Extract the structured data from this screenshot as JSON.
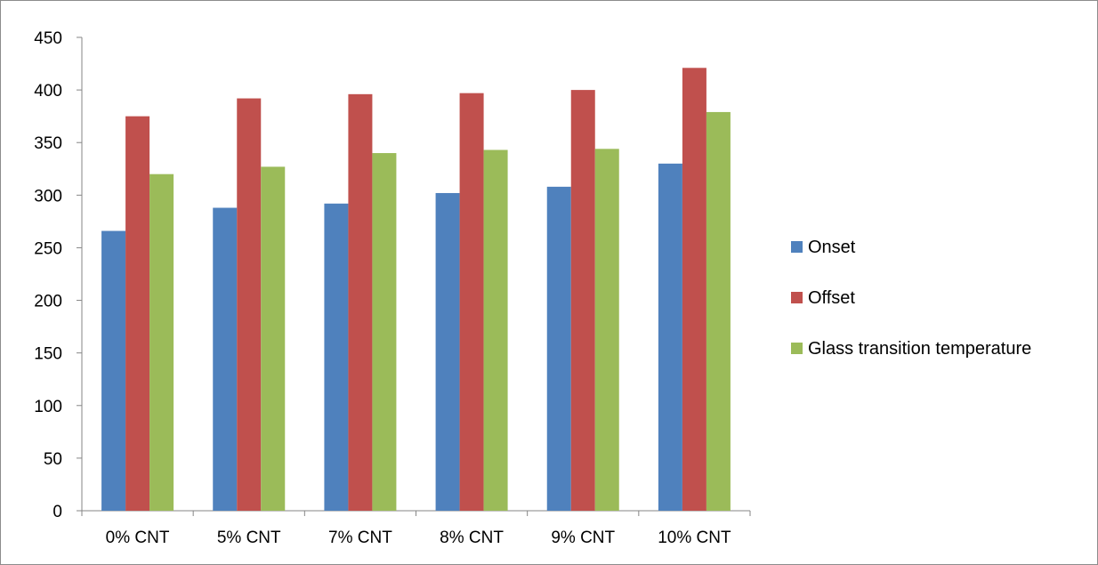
{
  "chart_data": {
    "type": "bar",
    "title": "",
    "xlabel": "",
    "ylabel": "",
    "categories": [
      "0% CNT",
      "5% CNT",
      "7% CNT",
      "8% CNT",
      "9% CNT",
      "10% CNT"
    ],
    "series": [
      {
        "name": "Onset",
        "color": "#4f81bd",
        "values": [
          266,
          288,
          292,
          302,
          308,
          330
        ]
      },
      {
        "name": "Offset",
        "color": "#c0504d",
        "values": [
          375,
          392,
          396,
          397,
          400,
          421
        ]
      },
      {
        "name": "Glass transition temperature",
        "color": "#9bbb59",
        "values": [
          320,
          327,
          340,
          343,
          344,
          379
        ]
      }
    ],
    "ylim": [
      0,
      450
    ],
    "yticks": [
      0,
      50,
      100,
      150,
      200,
      250,
      300,
      350,
      400,
      450
    ],
    "grid": false,
    "legend_position": "right"
  }
}
